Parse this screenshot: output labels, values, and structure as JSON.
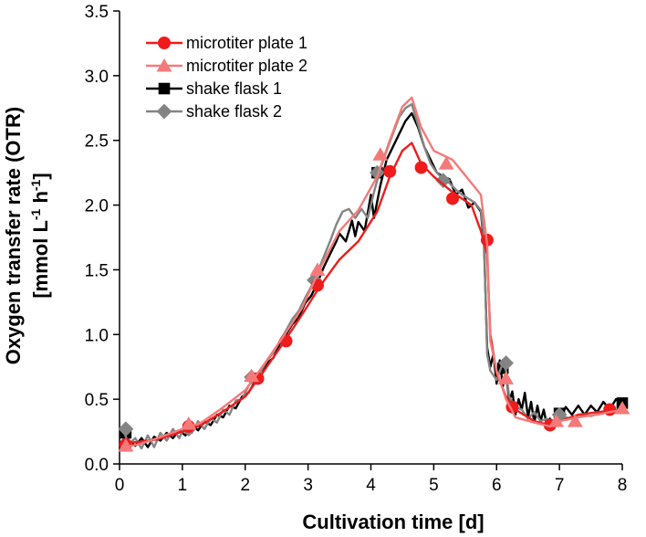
{
  "chart_data": {
    "type": "line",
    "title": "",
    "xlabel": "Cultivation time   [d]",
    "ylabel_line1": "Oxygen transfer rate (OTR)",
    "ylabel_line2_prefix": "[mmol L",
    "ylabel_line2_exp1": "-1",
    "ylabel_line2_mid": " h",
    "ylabel_line2_exp2": "-1",
    "ylabel_line2_suffix": "]",
    "xlim": [
      0,
      8
    ],
    "ylim": [
      0,
      3.5
    ],
    "xticks": [
      0,
      1,
      2,
      3,
      4,
      5,
      6,
      7,
      8
    ],
    "yticks": [
      0.0,
      0.5,
      1.0,
      1.5,
      2.0,
      2.5,
      3.0,
      3.5
    ],
    "xtick_labels": [
      "0",
      "1",
      "2",
      "3",
      "4",
      "5",
      "6",
      "7",
      "8"
    ],
    "ytick_labels": [
      "0.0",
      "0.5",
      "1.0",
      "1.5",
      "2.0",
      "2.5",
      "3.0",
      "3.5"
    ],
    "legend_position": "top-left",
    "series": [
      {
        "name": "microtiter plate 1",
        "color": "#ee1c1c",
        "marker": "circle",
        "line": [
          [
            0.05,
            0.16
          ],
          [
            0.3,
            0.17
          ],
          [
            0.6,
            0.19
          ],
          [
            1.0,
            0.25
          ],
          [
            1.3,
            0.3
          ],
          [
            1.6,
            0.39
          ],
          [
            2.0,
            0.52
          ],
          [
            2.3,
            0.72
          ],
          [
            2.6,
            0.93
          ],
          [
            2.9,
            1.15
          ],
          [
            3.2,
            1.38
          ],
          [
            3.5,
            1.58
          ],
          [
            3.8,
            1.72
          ],
          [
            4.1,
            1.95
          ],
          [
            4.3,
            2.22
          ],
          [
            4.5,
            2.42
          ],
          [
            4.65,
            2.48
          ],
          [
            4.8,
            2.32
          ],
          [
            5.0,
            2.22
          ],
          [
            5.3,
            2.1
          ],
          [
            5.6,
            2.0
          ],
          [
            5.75,
            1.8
          ],
          [
            5.85,
            1.62
          ],
          [
            5.9,
            1.0
          ],
          [
            6.0,
            0.7
          ],
          [
            6.15,
            0.52
          ],
          [
            6.3,
            0.42
          ],
          [
            6.6,
            0.33
          ],
          [
            6.85,
            0.3
          ],
          [
            7.0,
            0.33
          ],
          [
            7.3,
            0.38
          ],
          [
            7.6,
            0.4
          ],
          [
            8.0,
            0.42
          ]
        ],
        "markers": [
          [
            0.1,
            0.15
          ],
          [
            1.1,
            0.29
          ],
          [
            2.2,
            0.66
          ],
          [
            2.65,
            0.95
          ],
          [
            3.15,
            1.38
          ],
          [
            4.3,
            2.26
          ],
          [
            4.8,
            2.29
          ],
          [
            5.3,
            2.05
          ],
          [
            5.85,
            1.73
          ],
          [
            6.25,
            0.44
          ],
          [
            6.85,
            0.3
          ],
          [
            7.8,
            0.42
          ]
        ]
      },
      {
        "name": "microtiter plate 2",
        "color": "#f47a7a",
        "marker": "triangle",
        "line": [
          [
            0.05,
            0.13
          ],
          [
            0.3,
            0.15
          ],
          [
            0.6,
            0.2
          ],
          [
            1.0,
            0.27
          ],
          [
            1.3,
            0.32
          ],
          [
            1.6,
            0.42
          ],
          [
            2.0,
            0.57
          ],
          [
            2.3,
            0.77
          ],
          [
            2.6,
            0.98
          ],
          [
            2.9,
            1.2
          ],
          [
            3.2,
            1.52
          ],
          [
            3.5,
            1.8
          ],
          [
            3.8,
            1.96
          ],
          [
            4.1,
            2.22
          ],
          [
            4.3,
            2.5
          ],
          [
            4.5,
            2.76
          ],
          [
            4.65,
            2.83
          ],
          [
            4.8,
            2.6
          ],
          [
            5.0,
            2.42
          ],
          [
            5.3,
            2.35
          ],
          [
            5.55,
            2.2
          ],
          [
            5.75,
            2.08
          ],
          [
            5.85,
            1.7
          ],
          [
            5.9,
            0.95
          ],
          [
            6.0,
            0.72
          ],
          [
            6.15,
            0.5
          ],
          [
            6.3,
            0.36
          ],
          [
            6.6,
            0.32
          ],
          [
            6.85,
            0.29
          ],
          [
            7.0,
            0.33
          ],
          [
            7.3,
            0.36
          ],
          [
            7.6,
            0.38
          ],
          [
            8.0,
            0.42
          ]
        ],
        "markers": [
          [
            0.1,
            0.14
          ],
          [
            1.1,
            0.31
          ],
          [
            2.1,
            0.68
          ],
          [
            3.15,
            1.5
          ],
          [
            4.15,
            2.39
          ],
          [
            5.2,
            2.32
          ],
          [
            6.15,
            0.66
          ],
          [
            6.95,
            0.33
          ],
          [
            7.25,
            0.33
          ],
          [
            8.0,
            0.43
          ]
        ]
      },
      {
        "name": "shake flask 1",
        "color": "#000000",
        "marker": "square",
        "line": [
          [
            0.05,
            0.24
          ],
          [
            0.15,
            0.18
          ],
          [
            0.25,
            0.14
          ],
          [
            0.35,
            0.2
          ],
          [
            0.45,
            0.13
          ],
          [
            0.55,
            0.21
          ],
          [
            0.65,
            0.18
          ],
          [
            0.75,
            0.24
          ],
          [
            0.85,
            0.2
          ],
          [
            0.95,
            0.26
          ],
          [
            1.05,
            0.22
          ],
          [
            1.15,
            0.3
          ],
          [
            1.25,
            0.26
          ],
          [
            1.35,
            0.33
          ],
          [
            1.45,
            0.3
          ],
          [
            1.55,
            0.38
          ],
          [
            1.65,
            0.36
          ],
          [
            1.75,
            0.45
          ],
          [
            1.85,
            0.43
          ],
          [
            1.95,
            0.52
          ],
          [
            2.05,
            0.55
          ],
          [
            2.15,
            0.63
          ],
          [
            2.25,
            0.68
          ],
          [
            2.35,
            0.78
          ],
          [
            2.45,
            0.82
          ],
          [
            2.55,
            0.93
          ],
          [
            2.65,
            1.0
          ],
          [
            2.75,
            1.08
          ],
          [
            2.85,
            1.13
          ],
          [
            2.95,
            1.24
          ],
          [
            3.05,
            1.3
          ],
          [
            3.15,
            1.4
          ],
          [
            3.25,
            1.52
          ],
          [
            3.35,
            1.62
          ],
          [
            3.45,
            1.72
          ],
          [
            3.5,
            1.78
          ],
          [
            3.6,
            1.72
          ],
          [
            3.7,
            1.88
          ],
          [
            3.75,
            1.76
          ],
          [
            3.8,
            1.87
          ],
          [
            3.9,
            1.8
          ],
          [
            4.0,
            2.08
          ],
          [
            4.05,
            1.9
          ],
          [
            4.15,
            2.15
          ],
          [
            4.25,
            2.35
          ],
          [
            4.35,
            2.45
          ],
          [
            4.45,
            2.55
          ],
          [
            4.55,
            2.65
          ],
          [
            4.65,
            2.71
          ],
          [
            4.75,
            2.6
          ],
          [
            4.85,
            2.45
          ],
          [
            4.95,
            2.35
          ],
          [
            5.05,
            2.25
          ],
          [
            5.15,
            2.22
          ],
          [
            5.25,
            2.2
          ],
          [
            5.35,
            2.08
          ],
          [
            5.45,
            2.12
          ],
          [
            5.55,
            1.98
          ],
          [
            5.65,
            2.02
          ],
          [
            5.75,
            1.95
          ],
          [
            5.8,
            1.7
          ],
          [
            5.85,
            0.9
          ],
          [
            5.9,
            0.75
          ],
          [
            5.95,
            0.85
          ],
          [
            6.0,
            0.62
          ],
          [
            6.05,
            0.8
          ],
          [
            6.1,
            0.6
          ],
          [
            6.15,
            0.72
          ],
          [
            6.2,
            0.48
          ],
          [
            6.25,
            0.56
          ],
          [
            6.3,
            0.38
          ],
          [
            6.35,
            0.5
          ],
          [
            6.4,
            0.42
          ],
          [
            6.45,
            0.55
          ],
          [
            6.5,
            0.36
          ],
          [
            6.55,
            0.48
          ],
          [
            6.6,
            0.32
          ],
          [
            6.65,
            0.45
          ],
          [
            6.7,
            0.33
          ],
          [
            6.75,
            0.42
          ],
          [
            6.8,
            0.3
          ],
          [
            6.85,
            0.35
          ],
          [
            6.9,
            0.3
          ],
          [
            6.95,
            0.38
          ],
          [
            7.0,
            0.34
          ],
          [
            7.1,
            0.44
          ],
          [
            7.2,
            0.38
          ],
          [
            7.3,
            0.45
          ],
          [
            7.4,
            0.38
          ],
          [
            7.5,
            0.45
          ],
          [
            7.6,
            0.4
          ],
          [
            7.7,
            0.48
          ],
          [
            7.8,
            0.42
          ],
          [
            7.9,
            0.5
          ],
          [
            8.0,
            0.46
          ]
        ],
        "markers": [
          [
            0.1,
            0.24
          ],
          [
            4.1,
            2.25
          ],
          [
            6.1,
            0.74
          ],
          [
            7.0,
            0.39
          ],
          [
            8.0,
            0.47
          ]
        ]
      },
      {
        "name": "shake flask 2",
        "color": "#848484",
        "marker": "diamond",
        "line": [
          [
            0.05,
            0.27
          ],
          [
            0.15,
            0.15
          ],
          [
            0.25,
            0.2
          ],
          [
            0.35,
            0.12
          ],
          [
            0.45,
            0.22
          ],
          [
            0.55,
            0.13
          ],
          [
            0.65,
            0.24
          ],
          [
            0.75,
            0.18
          ],
          [
            0.85,
            0.27
          ],
          [
            0.95,
            0.2
          ],
          [
            1.05,
            0.3
          ],
          [
            1.15,
            0.24
          ],
          [
            1.25,
            0.33
          ],
          [
            1.35,
            0.27
          ],
          [
            1.45,
            0.35
          ],
          [
            1.55,
            0.32
          ],
          [
            1.65,
            0.42
          ],
          [
            1.75,
            0.38
          ],
          [
            1.85,
            0.49
          ],
          [
            1.95,
            0.5
          ],
          [
            2.05,
            0.6
          ],
          [
            2.15,
            0.67
          ],
          [
            2.25,
            0.72
          ],
          [
            2.35,
            0.8
          ],
          [
            2.45,
            0.86
          ],
          [
            2.55,
            0.95
          ],
          [
            2.65,
            1.03
          ],
          [
            2.75,
            1.12
          ],
          [
            2.85,
            1.18
          ],
          [
            2.95,
            1.28
          ],
          [
            3.05,
            1.37
          ],
          [
            3.15,
            1.48
          ],
          [
            3.25,
            1.6
          ],
          [
            3.35,
            1.72
          ],
          [
            3.45,
            1.85
          ],
          [
            3.55,
            1.95
          ],
          [
            3.65,
            1.97
          ],
          [
            3.75,
            1.9
          ],
          [
            3.85,
            1.97
          ],
          [
            3.95,
            1.9
          ],
          [
            4.05,
            2.1
          ],
          [
            4.15,
            2.28
          ],
          [
            4.25,
            2.42
          ],
          [
            4.35,
            2.55
          ],
          [
            4.45,
            2.68
          ],
          [
            4.55,
            2.75
          ],
          [
            4.65,
            2.78
          ],
          [
            4.75,
            2.62
          ],
          [
            4.85,
            2.45
          ],
          [
            4.95,
            2.32
          ],
          [
            5.05,
            2.25
          ],
          [
            5.15,
            2.2
          ],
          [
            5.25,
            2.17
          ],
          [
            5.35,
            2.12
          ],
          [
            5.45,
            2.08
          ],
          [
            5.55,
            2.05
          ],
          [
            5.65,
            2.02
          ],
          [
            5.75,
            1.96
          ],
          [
            5.8,
            1.75
          ],
          [
            5.85,
            0.85
          ],
          [
            5.9,
            0.72
          ],
          [
            6.0,
            0.65
          ],
          [
            6.1,
            0.78
          ],
          [
            6.15,
            0.72
          ],
          [
            6.2,
            0.52
          ],
          [
            6.3,
            0.44
          ],
          [
            6.4,
            0.42
          ],
          [
            6.5,
            0.35
          ],
          [
            6.6,
            0.4
          ],
          [
            6.7,
            0.33
          ],
          [
            6.8,
            0.35
          ],
          [
            6.9,
            0.32
          ],
          [
            7.0,
            0.35
          ],
          [
            7.1,
            0.36
          ],
          [
            7.2,
            0.35
          ],
          [
            7.3,
            0.38
          ],
          [
            7.5,
            0.37
          ],
          [
            7.7,
            0.4
          ],
          [
            8.0,
            0.41
          ]
        ],
        "markers": [
          [
            0.1,
            0.27
          ],
          [
            1.1,
            0.27
          ],
          [
            2.1,
            0.67
          ],
          [
            3.1,
            1.42
          ],
          [
            4.1,
            2.25
          ],
          [
            5.15,
            2.19
          ],
          [
            6.15,
            0.78
          ],
          [
            7.0,
            0.38
          ]
        ]
      }
    ]
  }
}
